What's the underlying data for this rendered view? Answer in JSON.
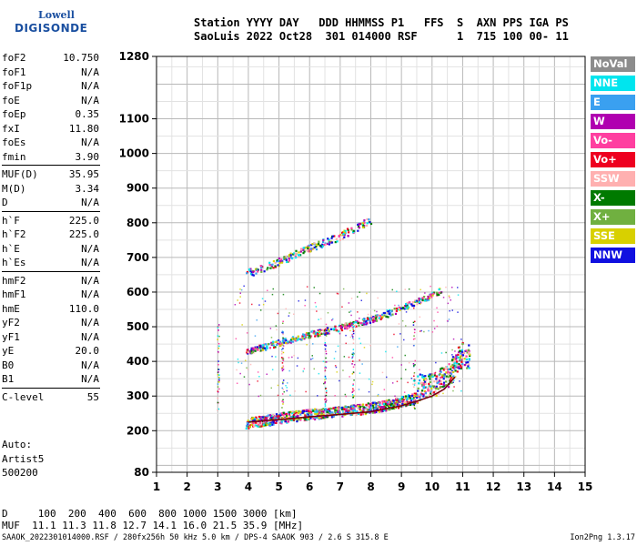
{
  "logo": {
    "line1": "Lowell",
    "line2": "DIGISONDE"
  },
  "header": {
    "line1": "Station YYYY DAY   DDD HHMMSS P1   FFS  S  AXN PPS IGA PS",
    "line2": "SaoLuis 2022 Oct28  301 014000 RSF      1  715 100 00- 11"
  },
  "params": [
    {
      "label": "foF2",
      "value": "10.750"
    },
    {
      "label": "foF1",
      "value": "N/A"
    },
    {
      "label": "foF1p",
      "value": "N/A"
    },
    {
      "label": "foE",
      "value": "N/A"
    },
    {
      "label": "foEp",
      "value": "0.35"
    },
    {
      "label": "fxI",
      "value": "11.80"
    },
    {
      "label": "foEs",
      "value": "N/A"
    },
    {
      "label": "fmin",
      "value": "3.90"
    },
    {
      "sep": true
    },
    {
      "label": "MUF(D)",
      "value": "35.95"
    },
    {
      "label": "M(D)",
      "value": "3.34"
    },
    {
      "label": "D",
      "value": "N/A"
    },
    {
      "sep": true
    },
    {
      "label": "h`F",
      "value": "225.0"
    },
    {
      "label": "h`F2",
      "value": "225.0"
    },
    {
      "label": "h`E",
      "value": "N/A"
    },
    {
      "label": "h`Es",
      "value": "N/A"
    },
    {
      "sep": true
    },
    {
      "label": "hmF2",
      "value": "N/A"
    },
    {
      "label": "hmF1",
      "value": "N/A"
    },
    {
      "label": "hmE",
      "value": "110.0"
    },
    {
      "label": "yF2",
      "value": "N/A"
    },
    {
      "label": "yF1",
      "value": "N/A"
    },
    {
      "label": "yE",
      "value": "20.0"
    },
    {
      "label": "B0",
      "value": "N/A"
    },
    {
      "label": "B1",
      "value": "N/A"
    },
    {
      "sep": true
    },
    {
      "label": "C-level",
      "value": "55"
    }
  ],
  "auto": {
    "line1": "Auto:",
    "line2": "Artist5",
    "line3": "500200"
  },
  "legend": [
    {
      "label": "NoVal",
      "color": "#8c8c8c"
    },
    {
      "label": "NNE",
      "color": "#00e5ee"
    },
    {
      "label": "E",
      "color": "#3aa0f0"
    },
    {
      "label": "W",
      "color": "#b000b0"
    },
    {
      "label": "Vo-",
      "color": "#ff3fa0"
    },
    {
      "label": "Vo+",
      "color": "#ee0020"
    },
    {
      "label": "SSW",
      "color": "#ffb0b0"
    },
    {
      "label": "X-",
      "color": "#007a00"
    },
    {
      "label": "X+",
      "color": "#70b040"
    },
    {
      "label": "SSE",
      "color": "#d8d000"
    },
    {
      "label": "NNW",
      "color": "#1010e0"
    }
  ],
  "muf": {
    "line1": "D     100  200  400  600  800 1000 1500 3000 [km]",
    "line2": "MUF  11.1 11.3 11.8 12.7 14.1 16.0 21.5 35.9 [MHz]"
  },
  "footer": {
    "left": "SAAOK_2022301014000.RSF / 280fx256h 50 kHz 5.0 km / DPS-4 SAAOK 903 / 2.6 S 315.8 E",
    "right": "Ion2Png 1.3.17"
  },
  "chart_data": {
    "type": "scatter",
    "title": "",
    "xlabel": "",
    "ylabel": "",
    "xlim": [
      1,
      15
    ],
    "ylim": [
      80,
      1280
    ],
    "yticks": [
      80,
      200,
      300,
      400,
      500,
      600,
      700,
      800,
      900,
      1000,
      1100,
      1280
    ],
    "xticks": [
      1,
      2,
      3,
      4,
      5,
      6,
      7,
      8,
      9,
      10,
      11,
      12,
      13,
      14,
      15
    ],
    "grid": true,
    "traces": [
      {
        "name": "F2 trace",
        "points": [
          [
            3.9,
            218
          ],
          [
            4.5,
            225
          ],
          [
            5.0,
            232
          ],
          [
            5.5,
            238
          ],
          [
            6.0,
            243
          ],
          [
            6.5,
            248
          ],
          [
            7.0,
            252
          ],
          [
            7.5,
            256
          ],
          [
            8.0,
            262
          ],
          [
            8.5,
            270
          ],
          [
            9.0,
            280
          ],
          [
            9.5,
            292
          ],
          [
            10.0,
            305
          ],
          [
            10.3,
            318
          ],
          [
            10.6,
            335
          ],
          [
            10.75,
            360
          ],
          [
            10.9,
            375
          ],
          [
            11.0,
            385
          ],
          [
            11.2,
            375
          ]
        ]
      },
      {
        "name": "2nd hop",
        "points": [
          [
            3.9,
            425
          ],
          [
            4.5,
            440
          ],
          [
            5.0,
            452
          ],
          [
            5.5,
            465
          ],
          [
            6.0,
            476
          ],
          [
            6.5,
            486
          ],
          [
            7.0,
            496
          ],
          [
            7.5,
            508
          ],
          [
            8.0,
            520
          ],
          [
            8.5,
            535
          ],
          [
            9.0,
            552
          ],
          [
            9.5,
            572
          ],
          [
            10.0,
            590
          ],
          [
            10.3,
            605
          ]
        ]
      },
      {
        "name": "3rd hop",
        "points": [
          [
            3.9,
            650
          ],
          [
            4.5,
            668
          ],
          [
            5.0,
            686
          ],
          [
            5.5,
            705
          ],
          [
            6.0,
            724
          ],
          [
            6.5,
            742
          ],
          [
            7.0,
            760
          ],
          [
            7.5,
            784
          ],
          [
            8.0,
            806
          ]
        ]
      }
    ],
    "profile": {
      "points": [
        [
          4.0,
          225
        ],
        [
          5.0,
          232
        ],
        [
          6.0,
          240
        ],
        [
          7.0,
          247
        ],
        [
          8.0,
          255
        ],
        [
          9.0,
          272
        ],
        [
          9.5,
          285
        ],
        [
          10.0,
          300
        ],
        [
          10.4,
          320
        ],
        [
          10.75,
          355
        ]
      ]
    }
  }
}
